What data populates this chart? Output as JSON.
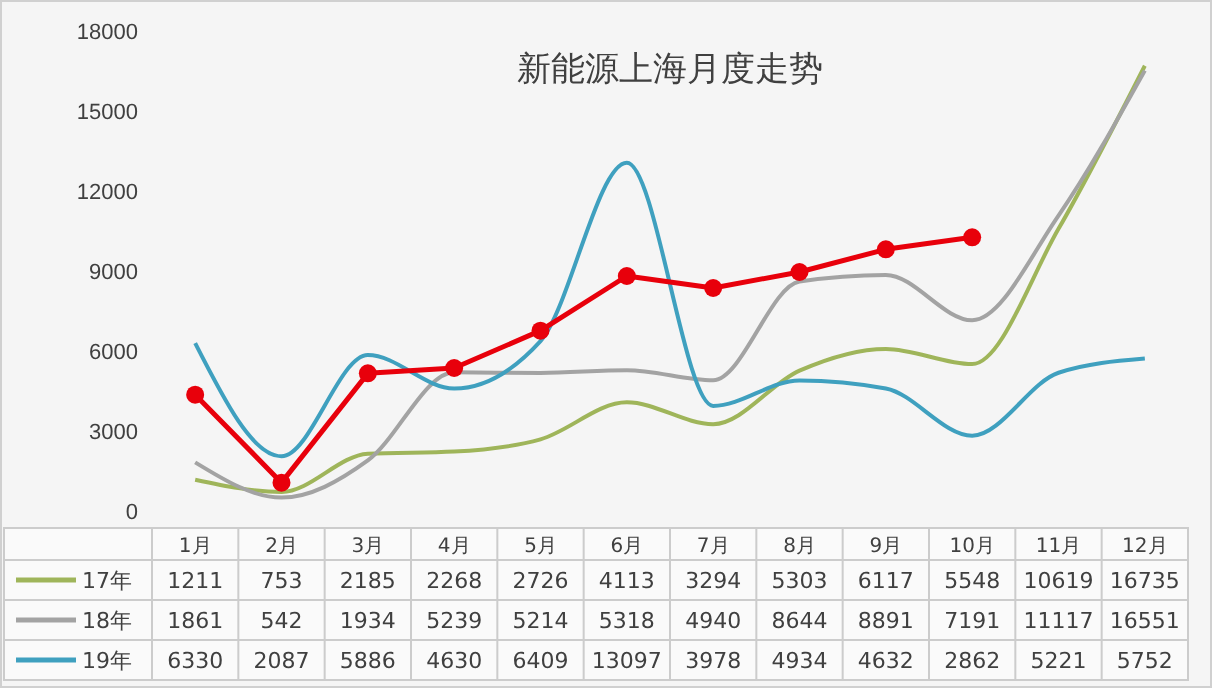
{
  "chart_data": {
    "type": "line",
    "title": "新能源上海月度走势",
    "categories": [
      "1月",
      "2月",
      "3月",
      "4月",
      "5月",
      "6月",
      "7月",
      "8月",
      "9月",
      "10月",
      "11月",
      "12月"
    ],
    "ylim": [
      0,
      18000
    ],
    "yticks": [
      0,
      3000,
      6000,
      9000,
      12000,
      15000,
      18000
    ],
    "grid": false,
    "legend": "bottom",
    "series": [
      {
        "name": "17年",
        "color": "#9fb55a",
        "values": [
          1211,
          753,
          2185,
          2268,
          2726,
          4113,
          3294,
          5303,
          6117,
          5548,
          10619,
          16735
        ],
        "value_labels": [
          "1211",
          "753",
          "2185",
          "2268",
          "2726",
          "4113",
          "3294",
          "5303",
          "6117",
          "5548",
          "10619",
          "16735"
        ],
        "marker": "none"
      },
      {
        "name": "18年",
        "color": "#a3a3a3",
        "values": [
          1861,
          542,
          1934,
          5239,
          5214,
          5318,
          4940,
          8644,
          8891,
          7191,
          11117,
          16551
        ],
        "value_labels": [
          "1861",
          "542",
          "1934",
          "5239",
          "5214",
          "5318",
          "4940",
          "8644",
          "8891",
          "7191",
          "11117",
          "16551"
        ],
        "marker": "none"
      },
      {
        "name": "19年",
        "color": "#3fa0bf",
        "values": [
          6330,
          2087,
          5886,
          4630,
          6409,
          13097,
          3978,
          4934,
          4632,
          2862,
          5221,
          5752
        ],
        "value_labels": [
          "6330",
          "2087",
          "5886",
          "4630",
          "6409",
          "13097",
          "3978",
          "4934",
          "4632",
          "2862",
          "5221",
          "5752"
        ],
        "marker": "none"
      },
      {
        "color": "#e8000b",
        "values": [
          4400,
          1100,
          5200,
          5400,
          6800,
          8850,
          8400,
          9000,
          9850,
          10300,
          null,
          null
        ],
        "marker": "circle"
      }
    ]
  }
}
